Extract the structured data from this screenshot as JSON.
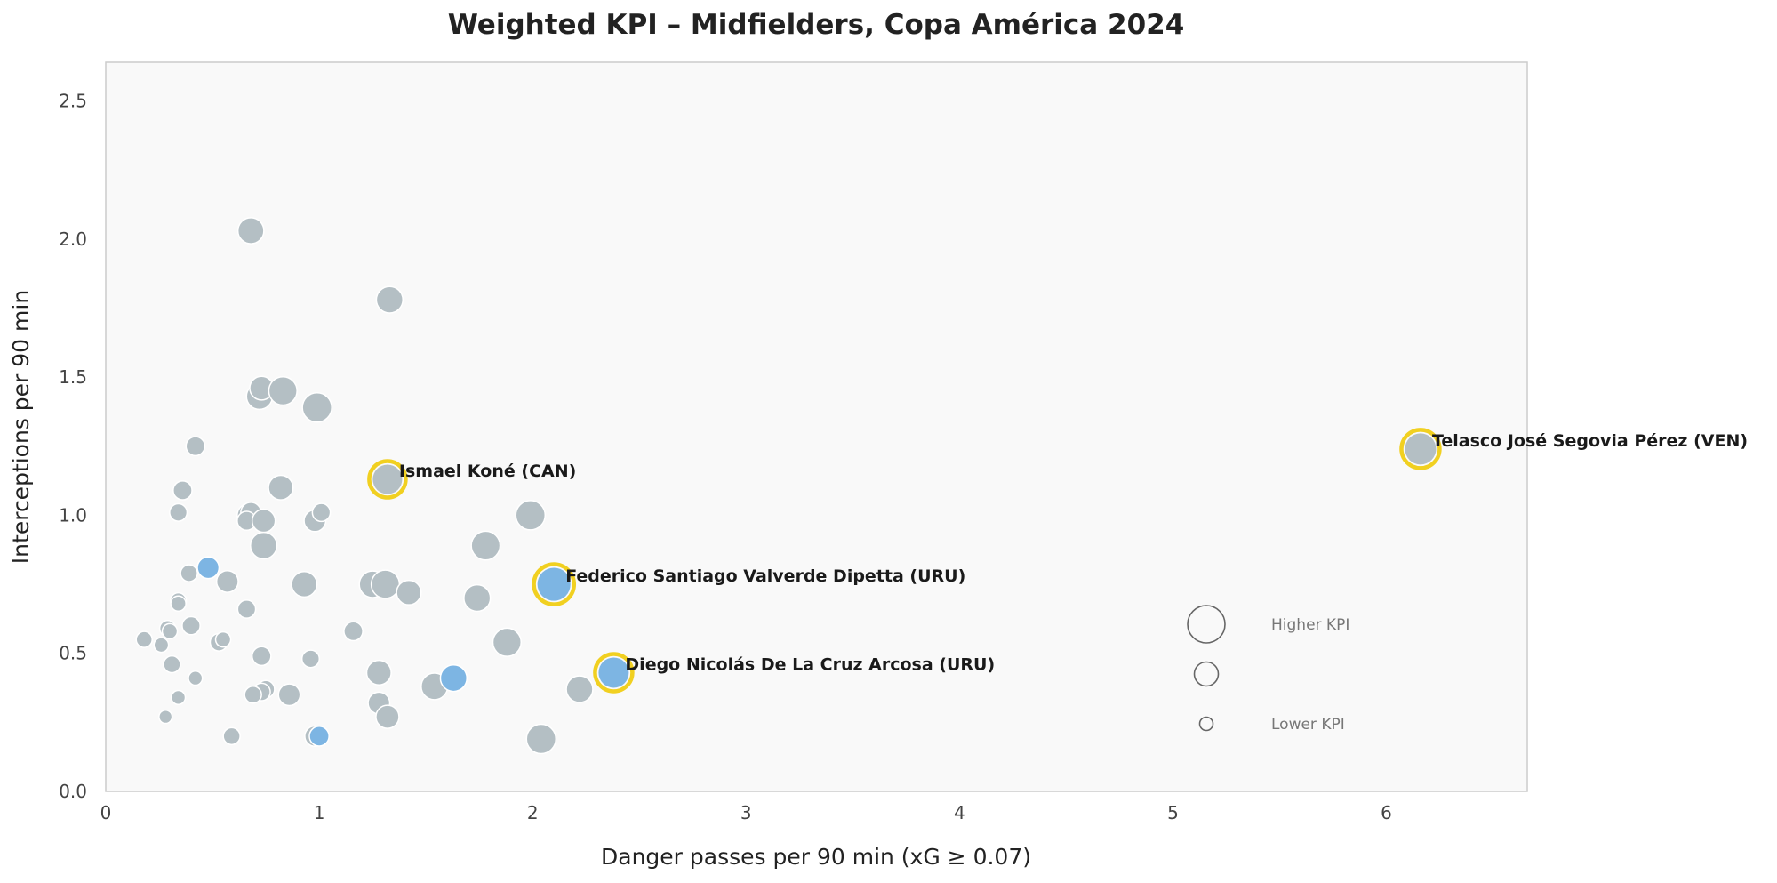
{
  "chart_data": {
    "type": "scatter",
    "title": "Weighted KPI – Midfielders, Copa América 2024",
    "xlabel": "Danger passes per 90 min (xG ≥ 0.07)",
    "ylabel": "Interceptions per 90 min",
    "xlim": [
      0,
      6.66
    ],
    "ylim": [
      0,
      2.64
    ],
    "xticks": [
      "0",
      "1",
      "2",
      "3",
      "4",
      "5",
      "6"
    ],
    "yticks": [
      "0.0",
      "0.5",
      "1.0",
      "1.5",
      "2.0",
      "2.5"
    ],
    "grid": false,
    "colors": {
      "default": "#b4bfc4",
      "team": "#7db5e3",
      "highlight_ring": "#f1d021",
      "background": "#f9f9f9",
      "frame": "#cccccc",
      "legend_marker": "#666666"
    },
    "points": [
      {
        "x": 0.68,
        "y": 2.03,
        "kpi": 0.6,
        "group": "default"
      },
      {
        "x": 1.33,
        "y": 1.78,
        "kpi": 0.62,
        "group": "default"
      },
      {
        "x": 0.72,
        "y": 1.43,
        "kpi": 0.6,
        "group": "default"
      },
      {
        "x": 0.73,
        "y": 1.46,
        "kpi": 0.52,
        "group": "default"
      },
      {
        "x": 0.83,
        "y": 1.45,
        "kpi": 0.68,
        "group": "default"
      },
      {
        "x": 0.99,
        "y": 1.39,
        "kpi": 0.72,
        "group": "default"
      },
      {
        "x": 0.42,
        "y": 1.25,
        "kpi": 0.35,
        "group": "default"
      },
      {
        "x": 0.36,
        "y": 1.09,
        "kpi": 0.35,
        "group": "default"
      },
      {
        "x": 0.82,
        "y": 1.1,
        "kpi": 0.55,
        "group": "default"
      },
      {
        "x": 0.34,
        "y": 1.01,
        "kpi": 0.3,
        "group": "default"
      },
      {
        "x": 0.67,
        "y": 1.0,
        "kpi": 0.5,
        "group": "default"
      },
      {
        "x": 0.68,
        "y": 1.01,
        "kpi": 0.4,
        "group": "default"
      },
      {
        "x": 0.66,
        "y": 0.98,
        "kpi": 0.35,
        "group": "default"
      },
      {
        "x": 0.74,
        "y": 0.98,
        "kpi": 0.5,
        "group": "default"
      },
      {
        "x": 0.98,
        "y": 0.98,
        "kpi": 0.45,
        "group": "default"
      },
      {
        "x": 1.01,
        "y": 1.01,
        "kpi": 0.32,
        "group": "default"
      },
      {
        "x": 1.99,
        "y": 1.0,
        "kpi": 0.72,
        "group": "default"
      },
      {
        "x": 0.74,
        "y": 0.89,
        "kpi": 0.62,
        "group": "default"
      },
      {
        "x": 1.78,
        "y": 0.89,
        "kpi": 0.7,
        "group": "default"
      },
      {
        "x": 0.39,
        "y": 0.79,
        "kpi": 0.28,
        "group": "default"
      },
      {
        "x": 0.48,
        "y": 0.81,
        "kpi": 0.45,
        "group": "team"
      },
      {
        "x": 0.57,
        "y": 0.76,
        "kpi": 0.45,
        "group": "default"
      },
      {
        "x": 0.93,
        "y": 0.75,
        "kpi": 0.58,
        "group": "default"
      },
      {
        "x": 1.25,
        "y": 0.75,
        "kpi": 0.62,
        "group": "default"
      },
      {
        "x": 1.31,
        "y": 0.75,
        "kpi": 0.68,
        "group": "default"
      },
      {
        "x": 1.42,
        "y": 0.72,
        "kpi": 0.55,
        "group": "default"
      },
      {
        "x": 1.74,
        "y": 0.7,
        "kpi": 0.62,
        "group": "default"
      },
      {
        "x": 0.34,
        "y": 0.69,
        "kpi": 0.25,
        "group": "default"
      },
      {
        "x": 0.34,
        "y": 0.68,
        "kpi": 0.22,
        "group": "default"
      },
      {
        "x": 0.66,
        "y": 0.66,
        "kpi": 0.32,
        "group": "default"
      },
      {
        "x": 0.4,
        "y": 0.6,
        "kpi": 0.32,
        "group": "default"
      },
      {
        "x": 0.29,
        "y": 0.59,
        "kpi": 0.25,
        "group": "default"
      },
      {
        "x": 0.3,
        "y": 0.58,
        "kpi": 0.22,
        "group": "default"
      },
      {
        "x": 1.16,
        "y": 0.58,
        "kpi": 0.35,
        "group": "default"
      },
      {
        "x": 0.18,
        "y": 0.55,
        "kpi": 0.25,
        "group": "default"
      },
      {
        "x": 0.53,
        "y": 0.54,
        "kpi": 0.3,
        "group": "default"
      },
      {
        "x": 0.55,
        "y": 0.55,
        "kpi": 0.22,
        "group": "default"
      },
      {
        "x": 0.26,
        "y": 0.53,
        "kpi": 0.2,
        "group": "default"
      },
      {
        "x": 1.88,
        "y": 0.54,
        "kpi": 0.68,
        "group": "default"
      },
      {
        "x": 0.73,
        "y": 0.49,
        "kpi": 0.35,
        "group": "default"
      },
      {
        "x": 0.96,
        "y": 0.48,
        "kpi": 0.3,
        "group": "default"
      },
      {
        "x": 0.31,
        "y": 0.46,
        "kpi": 0.28,
        "group": "default"
      },
      {
        "x": 1.28,
        "y": 0.43,
        "kpi": 0.55,
        "group": "default"
      },
      {
        "x": 0.42,
        "y": 0.41,
        "kpi": 0.18,
        "group": "default"
      },
      {
        "x": 1.54,
        "y": 0.38,
        "kpi": 0.62,
        "group": "default"
      },
      {
        "x": 1.63,
        "y": 0.41,
        "kpi": 0.62,
        "group": "team"
      },
      {
        "x": 2.22,
        "y": 0.37,
        "kpi": 0.62,
        "group": "default"
      },
      {
        "x": 0.75,
        "y": 0.37,
        "kpi": 0.3,
        "group": "default"
      },
      {
        "x": 0.73,
        "y": 0.36,
        "kpi": 0.3,
        "group": "default"
      },
      {
        "x": 0.69,
        "y": 0.35,
        "kpi": 0.28,
        "group": "default"
      },
      {
        "x": 0.86,
        "y": 0.35,
        "kpi": 0.45,
        "group": "default"
      },
      {
        "x": 0.34,
        "y": 0.34,
        "kpi": 0.18,
        "group": "default"
      },
      {
        "x": 1.28,
        "y": 0.32,
        "kpi": 0.45,
        "group": "default"
      },
      {
        "x": 1.32,
        "y": 0.27,
        "kpi": 0.5,
        "group": "default"
      },
      {
        "x": 0.28,
        "y": 0.27,
        "kpi": 0.15,
        "group": "default"
      },
      {
        "x": 0.59,
        "y": 0.2,
        "kpi": 0.28,
        "group": "default"
      },
      {
        "x": 0.98,
        "y": 0.2,
        "kpi": 0.4,
        "group": "default"
      },
      {
        "x": 1.0,
        "y": 0.2,
        "kpi": 0.38,
        "group": "team"
      },
      {
        "x": 2.04,
        "y": 0.19,
        "kpi": 0.72,
        "group": "default"
      }
    ],
    "highlighted": [
      {
        "label": "Telasco José Segovia Pérez (VEN)",
        "x": 6.16,
        "y": 1.24,
        "kpi": 0.78,
        "group": "default"
      },
      {
        "label": "Ismael Koné (CAN)",
        "x": 1.32,
        "y": 1.13,
        "kpi": 0.72,
        "group": "default"
      },
      {
        "label": "Federico Santiago Valverde Dipetta (URU)",
        "x": 2.1,
        "y": 0.75,
        "kpi": 0.85,
        "group": "team"
      },
      {
        "label": "Diego Nicolás De La Cruz Arcosa (URU)",
        "x": 2.38,
        "y": 0.43,
        "kpi": 0.75,
        "group": "team"
      }
    ],
    "size_legend": {
      "placement": "lower-right",
      "entries": [
        {
          "label": "Higher KPI",
          "kpi": 1.0
        },
        {
          "label": "",
          "kpi": 0.5
        },
        {
          "label": "Lower KPI",
          "kpi": 0.1
        }
      ]
    }
  }
}
